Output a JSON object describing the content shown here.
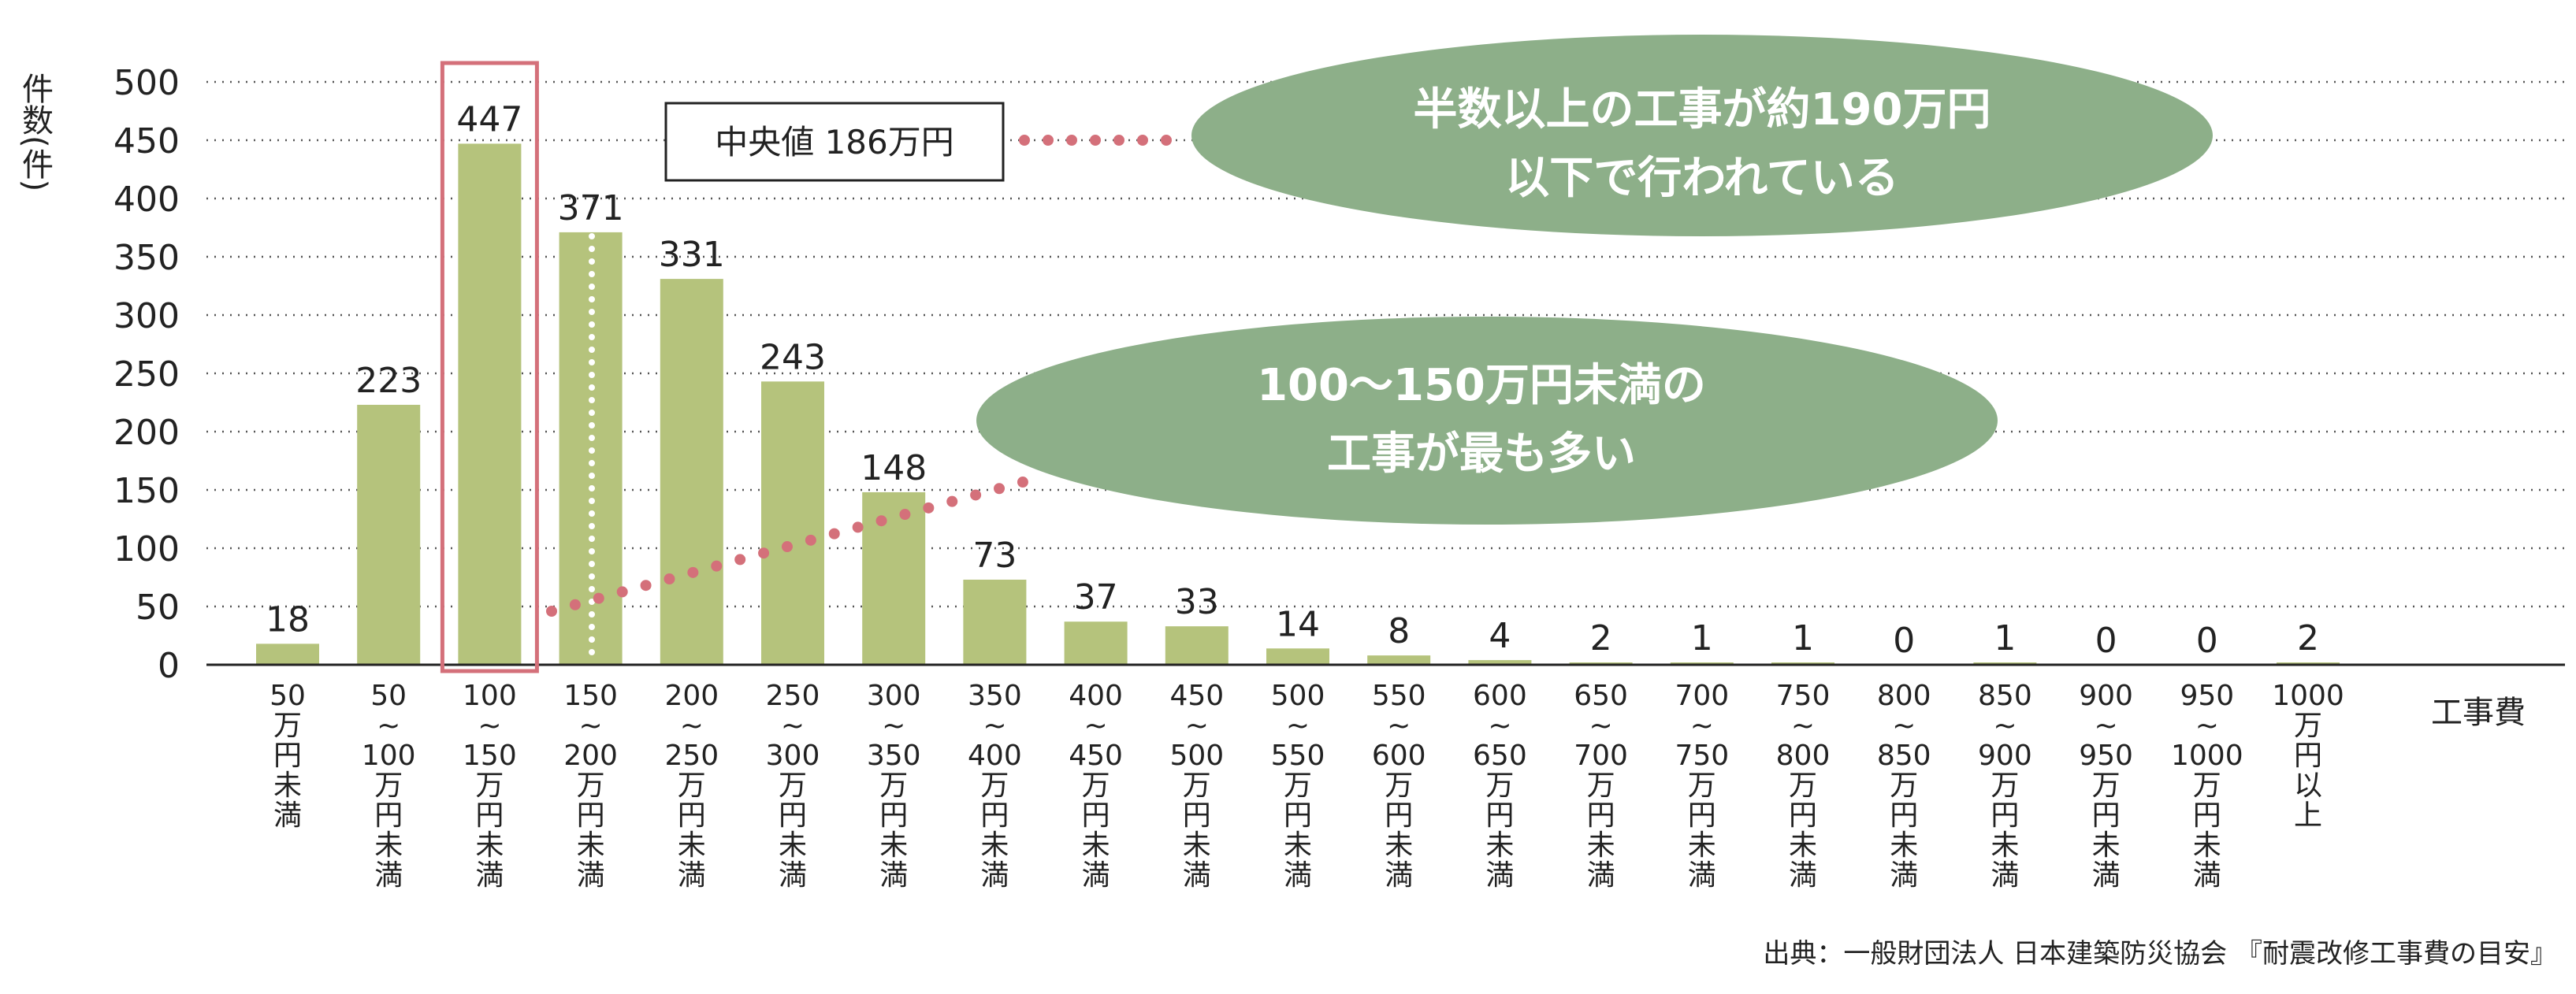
{
  "chart_data": {
    "type": "bar",
    "ylabel": "件数(件)",
    "xlabel": "工事費",
    "ylim": [
      0,
      500
    ],
    "yticks": [
      0,
      50,
      100,
      150,
      200,
      250,
      300,
      350,
      400,
      450,
      500
    ],
    "grid": "horizontal-dotted",
    "categories": [
      [
        "50",
        "万",
        "円",
        "未",
        "満"
      ],
      [
        "50",
        "~",
        "100",
        "万",
        "円",
        "未",
        "満"
      ],
      [
        "100",
        "~",
        "150",
        "万",
        "円",
        "未",
        "満"
      ],
      [
        "150",
        "~",
        "200",
        "万",
        "円",
        "未",
        "満"
      ],
      [
        "200",
        "~",
        "250",
        "万",
        "円",
        "未",
        "満"
      ],
      [
        "250",
        "~",
        "300",
        "万",
        "円",
        "未",
        "満"
      ],
      [
        "300",
        "~",
        "350",
        "万",
        "円",
        "未",
        "満"
      ],
      [
        "350",
        "~",
        "400",
        "万",
        "円",
        "未",
        "満"
      ],
      [
        "400",
        "~",
        "450",
        "万",
        "円",
        "未",
        "満"
      ],
      [
        "450",
        "~",
        "500",
        "万",
        "円",
        "未",
        "満"
      ],
      [
        "500",
        "~",
        "550",
        "万",
        "円",
        "未",
        "満"
      ],
      [
        "550",
        "~",
        "600",
        "万",
        "円",
        "未",
        "満"
      ],
      [
        "600",
        "~",
        "650",
        "万",
        "円",
        "未",
        "満"
      ],
      [
        "650",
        "~",
        "700",
        "万",
        "円",
        "未",
        "満"
      ],
      [
        "700",
        "~",
        "750",
        "万",
        "円",
        "未",
        "満"
      ],
      [
        "750",
        "~",
        "800",
        "万",
        "円",
        "未",
        "満"
      ],
      [
        "800",
        "~",
        "850",
        "万",
        "円",
        "未",
        "満"
      ],
      [
        "850",
        "~",
        "900",
        "万",
        "円",
        "未",
        "満"
      ],
      [
        "900",
        "~",
        "950",
        "万",
        "円",
        "未",
        "満"
      ],
      [
        "950",
        "~",
        "1000",
        "万",
        "円",
        "未",
        "満"
      ],
      [
        "1000",
        "万",
        "円",
        "以",
        "上"
      ]
    ],
    "values": [
      18,
      223,
      447,
      371,
      331,
      243,
      148,
      73,
      37,
      33,
      14,
      8,
      4,
      2,
      1,
      1,
      0,
      1,
      0,
      0,
      2
    ],
    "highlight_index": 2,
    "median_label": "中央値  186万円",
    "annotations": [
      "半数以上の工事が約190万円",
      "以下で行われている",
      "100〜150万円未満の",
      "工事が最も多い"
    ],
    "source": "出典：一般財団法人 日本建築防災協会 『耐震改修工事費の目安』",
    "colors": {
      "bar": "#b5c37c",
      "highlight": "#d4707a",
      "ellipse": "#8daf89",
      "dots": "#d4707a"
    }
  }
}
